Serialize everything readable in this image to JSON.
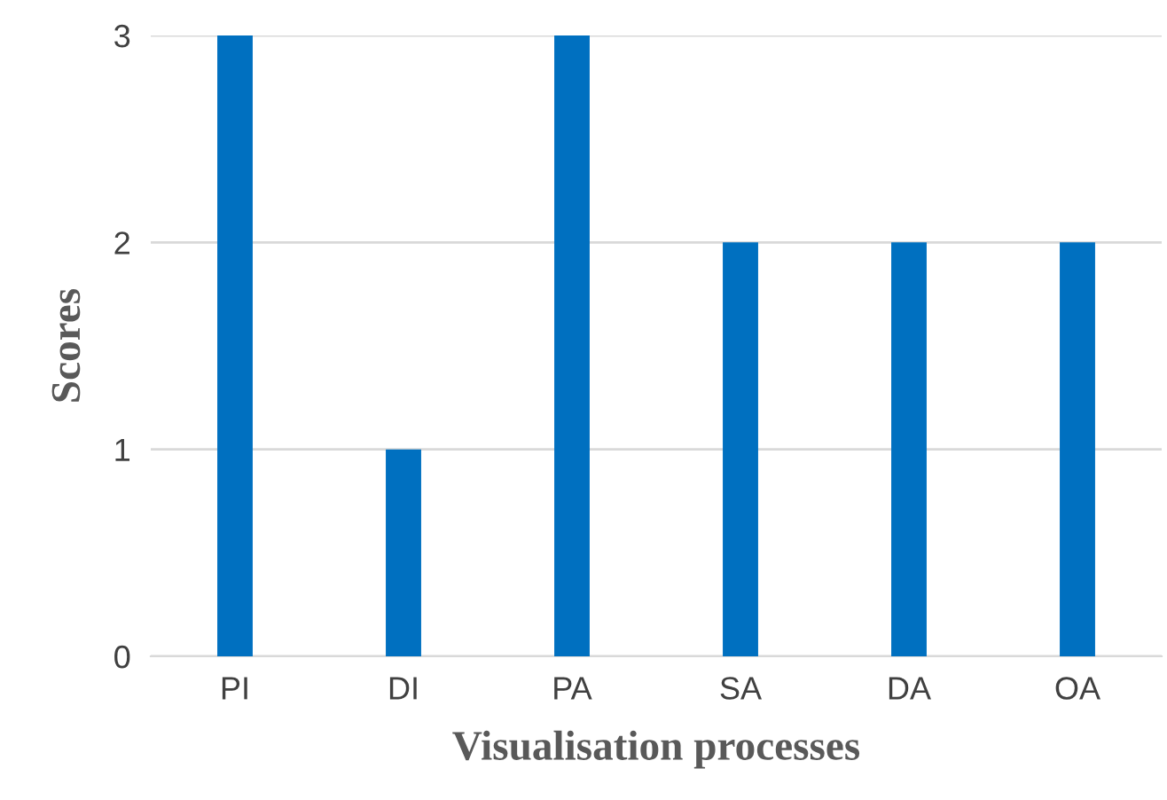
{
  "chart_data": {
    "type": "bar",
    "xlabel": "Visualisation processes",
    "ylabel": "Scores",
    "categories": [
      "PI",
      "DI",
      "PA",
      "SA",
      "DA",
      "OA"
    ],
    "values": [
      3,
      1,
      3,
      2,
      2,
      2
    ],
    "color": "#0070c0",
    "ylim": [
      0,
      3
    ],
    "yticks": [
      0,
      1,
      2,
      3
    ],
    "grid": "y",
    "legend": false
  }
}
